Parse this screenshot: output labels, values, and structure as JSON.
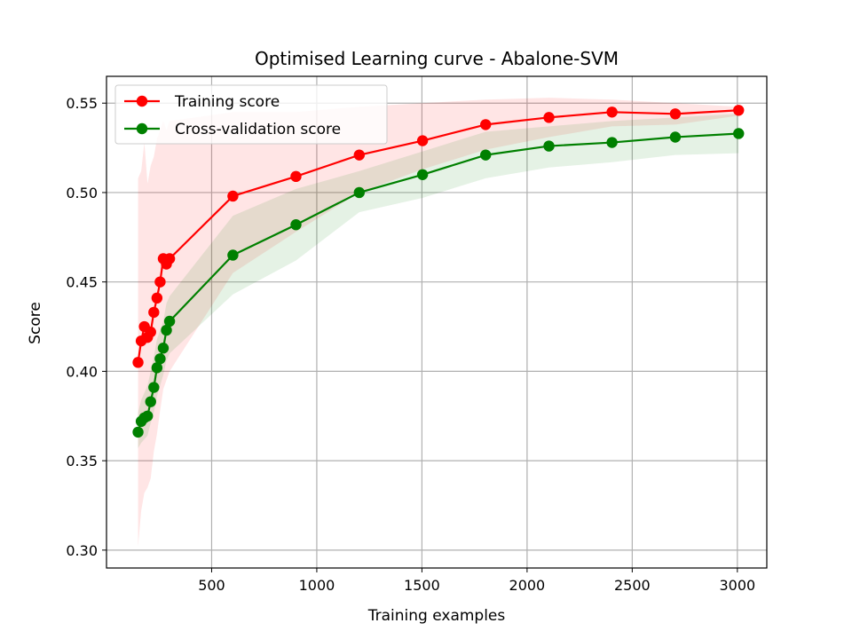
{
  "chart_data": {
    "type": "line",
    "title": "Optimised Learning curve - Abalone-SVM",
    "xlabel": "Training examples",
    "ylabel": "Score",
    "xlim": [
      0,
      3140
    ],
    "ylim": [
      0.29,
      0.565
    ],
    "xticks": [
      500,
      1000,
      1500,
      2000,
      2500,
      3000
    ],
    "xtick_labels": [
      "500",
      "1000",
      "1500",
      "2000",
      "2500",
      "3000"
    ],
    "yticks": [
      0.3,
      0.35,
      0.4,
      0.45,
      0.5,
      0.55
    ],
    "ytick_labels": [
      "0.30",
      "0.35",
      "0.40",
      "0.45",
      "0.50",
      "0.55"
    ],
    "grid": true,
    "legend_position": "top-left",
    "series": [
      {
        "name": "Training score",
        "color": "#ff0000",
        "band_color": "#ff0000",
        "x": [
          150,
          165,
          180,
          195,
          210,
          225,
          240,
          255,
          270,
          285,
          300,
          601,
          901,
          1202,
          1503,
          1803,
          2104,
          2404,
          2705,
          3006
        ],
        "y": [
          0.405,
          0.417,
          0.425,
          0.419,
          0.422,
          0.433,
          0.441,
          0.45,
          0.463,
          0.46,
          0.463,
          0.498,
          0.509,
          0.521,
          0.529,
          0.538,
          0.542,
          0.545,
          0.544,
          0.546
        ],
        "lower": [
          0.302,
          0.322,
          0.332,
          0.335,
          0.34,
          0.355,
          0.365,
          0.378,
          0.39,
          0.395,
          0.4,
          0.455,
          0.478,
          0.5,
          0.513,
          0.524,
          0.531,
          0.537,
          0.538,
          0.543
        ],
        "upper": [
          0.508,
          0.512,
          0.528,
          0.505,
          0.515,
          0.52,
          0.53,
          0.535,
          0.54,
          0.535,
          0.54,
          0.545,
          0.545,
          0.548,
          0.55,
          0.552,
          0.553,
          0.552,
          0.55,
          0.548
        ]
      },
      {
        "name": "Cross-validation score",
        "color": "#008000",
        "band_color": "#008000",
        "x": [
          150,
          165,
          180,
          195,
          210,
          225,
          240,
          255,
          270,
          285,
          300,
          601,
          901,
          1202,
          1503,
          1803,
          2104,
          2404,
          2705,
          3006
        ],
        "y": [
          0.366,
          0.372,
          0.374,
          0.375,
          0.383,
          0.391,
          0.402,
          0.407,
          0.413,
          0.423,
          0.428,
          0.465,
          0.482,
          0.5,
          0.51,
          0.521,
          0.526,
          0.528,
          0.531,
          0.533
        ],
        "lower": [
          0.357,
          0.36,
          0.362,
          0.364,
          0.371,
          0.377,
          0.386,
          0.392,
          0.398,
          0.406,
          0.41,
          0.443,
          0.462,
          0.489,
          0.497,
          0.508,
          0.514,
          0.517,
          0.521,
          0.522
        ],
        "upper": [
          0.377,
          0.384,
          0.388,
          0.392,
          0.4,
          0.408,
          0.418,
          0.423,
          0.428,
          0.438,
          0.442,
          0.487,
          0.502,
          0.512,
          0.523,
          0.534,
          0.537,
          0.54,
          0.542,
          0.544
        ]
      }
    ]
  }
}
